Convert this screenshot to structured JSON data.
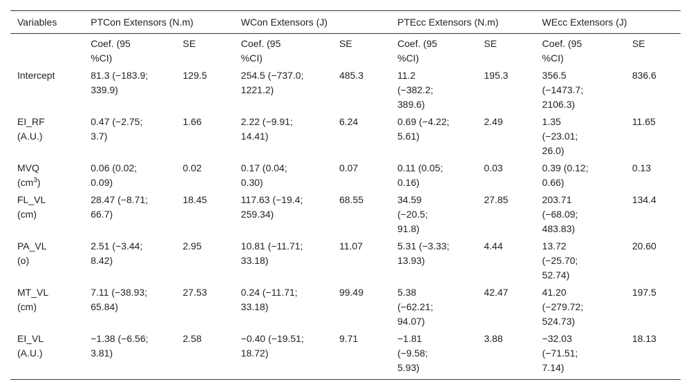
{
  "table": {
    "headers": [
      "Variables",
      "PTCon Extensors (N.m)",
      "WCon Extensors (J)",
      "PTEcc Extensors (N.m)",
      "WEcc Extensors (J)"
    ],
    "subheaders": {
      "coef": "Coef. (95\n%CI)",
      "se": "SE"
    },
    "rows": [
      {
        "variable": "Intercept",
        "cells": [
          "81.3 (−183.9;\n339.9)",
          "129.5",
          "254.5 (−737.0;\n1221.2)",
          "485.3",
          "11.2\n(−382.2;\n389.6)",
          "195.3",
          "356.5\n(−1473.7;\n2106.3)",
          "836.6"
        ]
      },
      {
        "variable": "EI_RF\n(A.U.)",
        "cells": [
          "0.47 (−2.75;\n3.7)",
          "1.66",
          "2.22 (−9.91;\n14.41)",
          "6.24",
          "0.69 (−4.22;\n5.61)",
          "2.49",
          "1.35\n(−23.01;\n26.0)",
          "11.65"
        ]
      },
      {
        "variable_main": "MVQ",
        "variable_unit": "(cm",
        "variable_sup": "3",
        "variable_close": ")",
        "cells": [
          "0.06 (0.02;\n0.09)",
          "0.02",
          "0.17 (0.04;\n0.30)",
          "0.07",
          "0.11 (0.05;\n0.16)",
          "0.03",
          "0.39 (0.12;\n0.66)",
          "0.13"
        ]
      },
      {
        "variable": "FL_VL\n(cm)",
        "cells": [
          "28.47 (−8.71;\n66.7)",
          "18.45",
          "117.63 (−19.4;\n259.34)",
          "68.55",
          "34.59\n(−20.5;\n91.8)",
          "27.85",
          "203.71\n(−68.09;\n483.83)",
          "134.4"
        ]
      },
      {
        "variable": "PA_VL\n(o)",
        "cells": [
          "2.51 (−3.44;\n8.42)",
          "2.95",
          "10.81 (−11.71;\n33.18)",
          "11.07",
          "5.31 (−3.33;\n13.93)",
          "4.44",
          "13.72\n(−25.70;\n52.74)",
          "20.60"
        ]
      },
      {
        "variable": "MT_VL\n(cm)",
        "cells": [
          "7.11 (−38.93;\n65.84)",
          "27.53",
          "0.24 (−11.71;\n33.18)",
          "99.49",
          "5.38\n(−62.21;\n94.07)",
          "42.47",
          "41.20\n(−279.72;\n524.73)",
          "197.5"
        ]
      },
      {
        "variable": "EI_VL\n(A.U.)",
        "cells": [
          "−1.38 (−6.56;\n3.81)",
          "2.58",
          "−0.40 (−19.51;\n18.72)",
          "9.71",
          "−1.81\n(−9.58;\n5.93)",
          "3.88",
          "−32.03\n(−71.51;\n7.14)",
          "18.13"
        ]
      }
    ]
  }
}
